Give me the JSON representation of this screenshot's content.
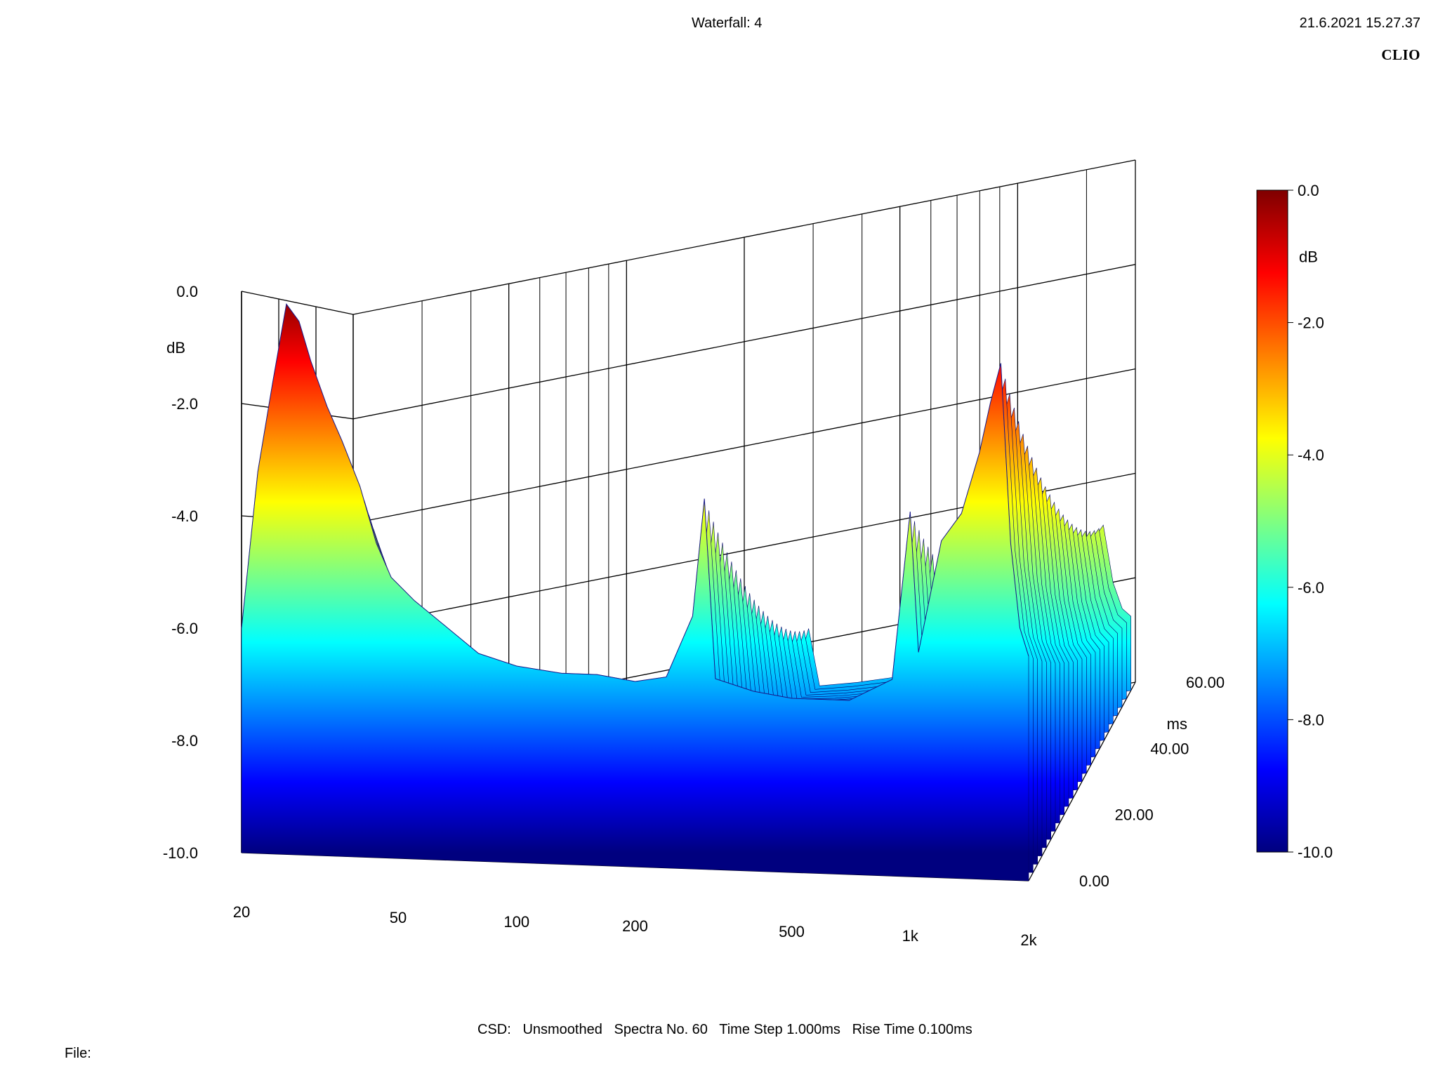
{
  "header": {
    "title": "Waterfall: 4",
    "date": "21.6.2021 15.27.37",
    "brand": "CLIO"
  },
  "footer": {
    "settings": "CSD:   Unsmoothed   Spectra No. 60   Time Step 1.000ms   Rise Time 0.100ms",
    "file_label": "File:"
  },
  "colors": {
    "gradient": [
      "#00007f",
      "#0000ff",
      "#0080ff",
      "#00ffff",
      "#80ff80",
      "#ffff00",
      "#ff8000",
      "#ff0000",
      "#7f0000"
    ],
    "grid": "#000000"
  },
  "chart_data": {
    "type": "waterfall",
    "xlabel": "",
    "ylabel": "dB",
    "zlabel": "ms",
    "x_scale": "log",
    "xlim": [
      20,
      2000
    ],
    "x_ticks": [
      20,
      50,
      100,
      200,
      500,
      1000,
      2000
    ],
    "x_tick_labels": [
      "20",
      "50",
      "100",
      "200",
      "500",
      "1k",
      "2k"
    ],
    "ylim": [
      -10,
      0
    ],
    "y_ticks": [
      0,
      -2,
      -4,
      -6,
      -8,
      -10
    ],
    "y_tick_labels": [
      "0.0",
      "-2.0",
      "-4.0",
      "-6.0",
      "-8.0",
      "-10.0"
    ],
    "zlim": [
      0,
      60
    ],
    "z_ticks": [
      0,
      20,
      40,
      60
    ],
    "z_tick_labels": [
      "0.00",
      "20.00",
      "40.00",
      "60.00"
    ],
    "colorbar": {
      "range": [
        -10,
        0
      ],
      "ticks": [
        0,
        -2,
        -4,
        -6,
        -8,
        -10
      ],
      "tick_labels": [
        "0.0",
        "-2.0",
        "-4.0",
        "-6.0",
        "-8.0",
        "-10.0"
      ],
      "label": "dB"
    },
    "spectra_count": 60,
    "front_slice": {
      "time_ms": 0,
      "points": [
        [
          20,
          -6.0
        ],
        [
          22,
          -3.2
        ],
        [
          24,
          -1.6
        ],
        [
          26,
          -0.2
        ],
        [
          28,
          -0.5
        ],
        [
          30,
          -1.2
        ],
        [
          33,
          -2.0
        ],
        [
          36,
          -2.6
        ],
        [
          40,
          -3.4
        ],
        [
          44,
          -4.4
        ],
        [
          48,
          -5.0
        ],
        [
          55,
          -5.4
        ],
        [
          65,
          -5.8
        ],
        [
          80,
          -6.3
        ],
        [
          100,
          -6.5
        ],
        [
          130,
          -6.6
        ],
        [
          160,
          -6.6
        ],
        [
          200,
          -6.7
        ],
        [
          240,
          -6.6
        ],
        [
          280,
          -5.5
        ],
        [
          300,
          -3.4
        ],
        [
          320,
          -6.6
        ],
        [
          400,
          -6.8
        ],
        [
          500,
          -6.9
        ],
        [
          700,
          -6.9
        ],
        [
          900,
          -6.5
        ],
        [
          1000,
          -3.5
        ],
        [
          1050,
          -6.0
        ],
        [
          1200,
          -4.0
        ],
        [
          1350,
          -3.5
        ],
        [
          1500,
          -2.4
        ],
        [
          1600,
          -1.5
        ],
        [
          1700,
          -0.8
        ],
        [
          1800,
          -4.0
        ],
        [
          1900,
          -5.5
        ],
        [
          2000,
          -6.0
        ]
      ]
    }
  }
}
